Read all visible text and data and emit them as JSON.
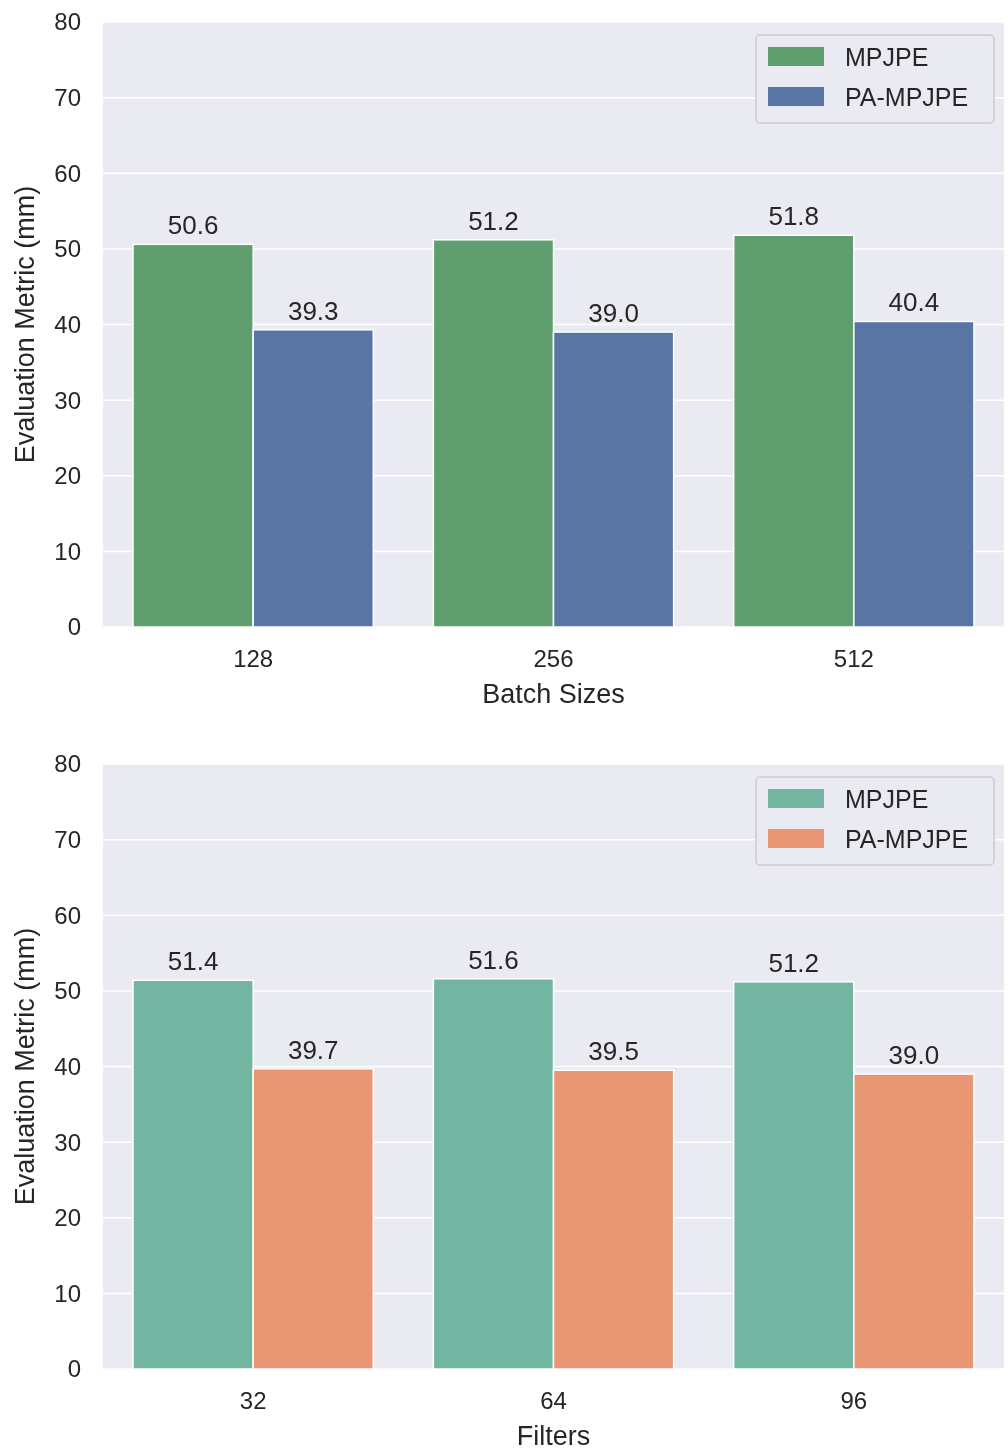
{
  "chart_data": [
    {
      "type": "bar",
      "xlabel": "Batch Sizes",
      "ylabel": "Evaluation Metric (mm)",
      "categories": [
        "128",
        "256",
        "512"
      ],
      "series": [
        {
          "name": "MPJPE",
          "color": "#5f9e6e",
          "values": [
            50.6,
            51.2,
            51.8
          ],
          "value_labels": [
            "50.6",
            "51.2",
            "51.8"
          ]
        },
        {
          "name": "PA-MPJPE",
          "color": "#5975a4",
          "values": [
            39.3,
            39.0,
            40.4
          ],
          "value_labels": [
            "39.3",
            "39.0",
            "40.4"
          ]
        }
      ],
      "ylim": [
        0,
        80
      ],
      "yticks": [
        0,
        10,
        20,
        30,
        40,
        50,
        60,
        70,
        80
      ],
      "grid": "y",
      "legend": "top right"
    },
    {
      "type": "bar",
      "xlabel": "Filters",
      "ylabel": "Evaluation Metric (mm)",
      "categories": [
        "32",
        "64",
        "96"
      ],
      "series": [
        {
          "name": "MPJPE",
          "color": "#72b6a1",
          "values": [
            51.4,
            51.6,
            51.2
          ],
          "value_labels": [
            "51.4",
            "51.6",
            "51.2"
          ]
        },
        {
          "name": "PA-MPJPE",
          "color": "#e99675",
          "values": [
            39.7,
            39.5,
            39.0
          ],
          "value_labels": [
            "39.7",
            "39.5",
            "39.0"
          ]
        }
      ],
      "ylim": [
        0,
        80
      ],
      "yticks": [
        0,
        10,
        20,
        30,
        40,
        50,
        60,
        70,
        80
      ],
      "grid": "y",
      "legend": "top right"
    }
  ]
}
